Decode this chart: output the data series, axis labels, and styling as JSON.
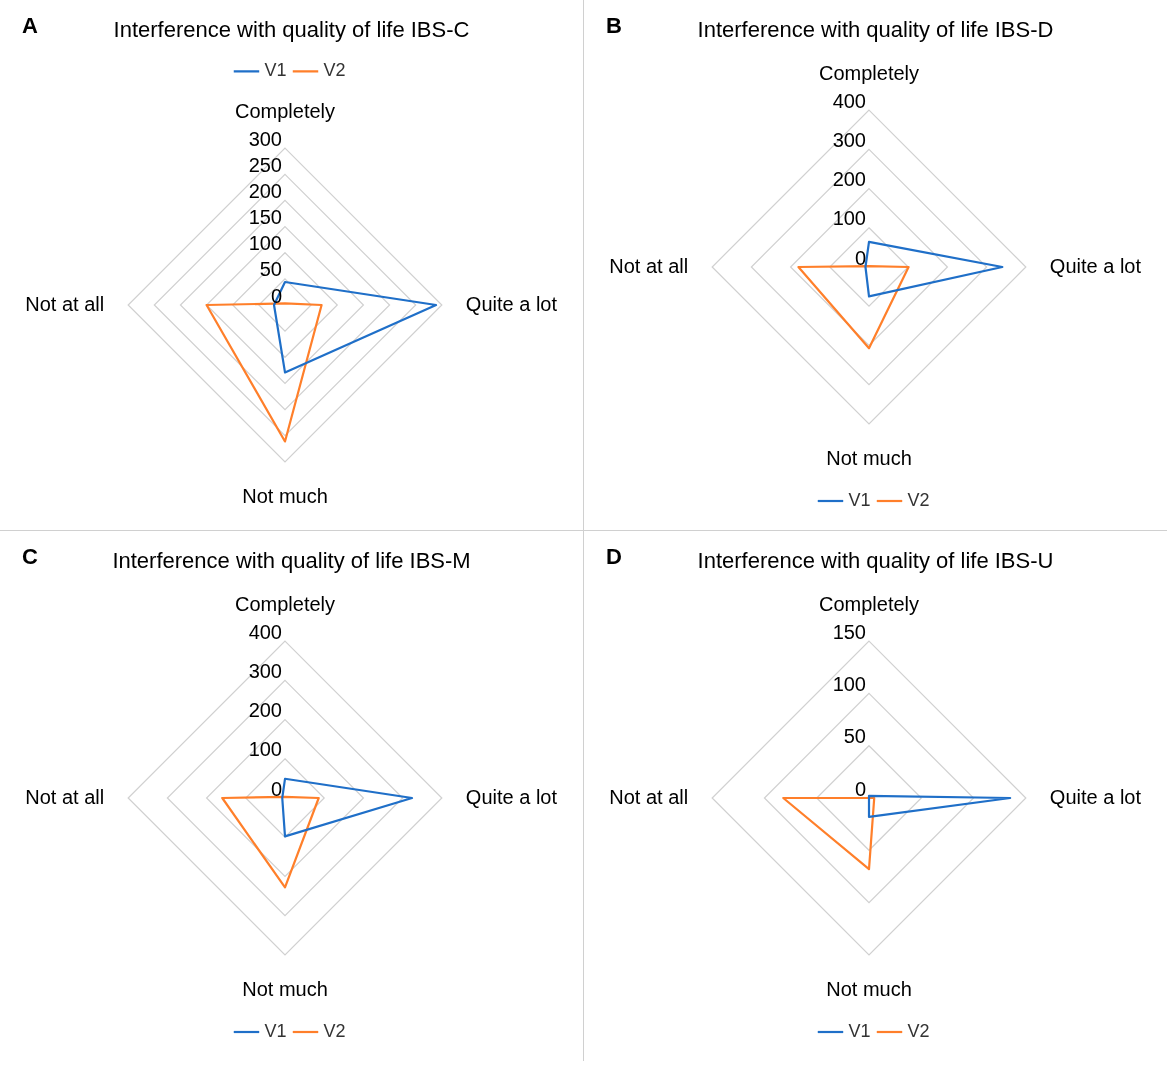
{
  "chart_data": [
    {
      "type": "radar",
      "title": "Interference with quality of life IBS-C",
      "annotations": [
        "A"
      ],
      "categories": [
        "Completely",
        "Quite a lot",
        "Not much",
        "Not at all"
      ],
      "ylim": [
        0,
        300
      ],
      "yticks": [
        0,
        50,
        100,
        150,
        200,
        250,
        300
      ],
      "grid": true,
      "legend": "top",
      "marker": "none",
      "series": [
        {
          "name": "V1",
          "color": "#1f6fc8",
          "values": [
            44,
            289,
            129,
            21
          ]
        },
        {
          "name": "V2",
          "color": "#ff7f2a",
          "values": [
            3,
            70,
            261,
            150
          ]
        }
      ]
    },
    {
      "type": "radar",
      "title": "Interference with quality of life IBS-D",
      "annotations": [
        "B"
      ],
      "categories": [
        "Completely",
        "Quite a lot",
        "Not much",
        "Not at all"
      ],
      "ylim": [
        0,
        400
      ],
      "yticks": [
        0,
        100,
        200,
        300,
        400
      ],
      "grid": true,
      "legend": "bottom",
      "marker": "none",
      "series": [
        {
          "name": "V1",
          "color": "#1f6fc8",
          "values": [
            64,
            340,
            75,
            9
          ]
        },
        {
          "name": "V2",
          "color": "#ff7f2a",
          "values": [
            2,
            101,
            207,
            180
          ]
        }
      ]
    },
    {
      "type": "radar",
      "title": "Interference with quality of life IBS-M",
      "annotations": [
        "C"
      ],
      "categories": [
        "Completely",
        "Quite a lot",
        "Not much",
        "Not at all"
      ],
      "ylim": [
        0,
        400
      ],
      "yticks": [
        0,
        100,
        200,
        300,
        400
      ],
      "grid": true,
      "legend": "bottom",
      "marker": "none",
      "series": [
        {
          "name": "V1",
          "color": "#1f6fc8",
          "values": [
            49,
            324,
            98,
            7
          ]
        },
        {
          "name": "V2",
          "color": "#ff7f2a",
          "values": [
            3,
            86,
            228,
            160
          ]
        }
      ]
    },
    {
      "type": "radar",
      "title": "Interference with quality of life IBS-U",
      "annotations": [
        "D"
      ],
      "categories": [
        "Completely",
        "Quite a lot",
        "Not much",
        "Not at all"
      ],
      "ylim": [
        0,
        150
      ],
      "yticks": [
        0,
        50,
        100,
        150
      ],
      "grid": true,
      "legend": "bottom",
      "marker": "none",
      "series": [
        {
          "name": "V1",
          "color": "#1f6fc8",
          "values": [
            2,
            135,
            18,
            0
          ]
        },
        {
          "name": "V2",
          "color": "#ff7f2a",
          "values": [
            0,
            5,
            68,
            82
          ]
        }
      ]
    }
  ]
}
